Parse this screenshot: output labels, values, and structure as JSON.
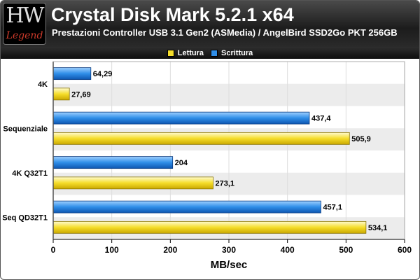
{
  "logo": {
    "hw": "HW",
    "legend": "Legend"
  },
  "chart_data": {
    "type": "bar",
    "orientation": "horizontal",
    "title": "Crystal Disk Mark 5.2.1 x64",
    "subtitle": "Prestazioni Controller USB 3.1 Gen2 (ASMedia) / AngelBird SSD2Go PKT 256GB",
    "xlabel": "MB/sec",
    "ylabel": "",
    "xlim": [
      0,
      600
    ],
    "xticks": [
      0,
      100,
      200,
      300,
      400,
      500,
      600
    ],
    "grid": "vertical",
    "legend_position": "top-center",
    "categories": [
      "4K",
      "Sequenziale",
      "4K Q32T1",
      "Seq QD32T1"
    ],
    "series": [
      {
        "name": "Lettura",
        "color": "#f5dd2a",
        "values": [
          27.69,
          505.9,
          273.1,
          534.1
        ],
        "labels": [
          "27,69",
          "505,9",
          "273,1",
          "534,1"
        ]
      },
      {
        "name": "Scrittura",
        "color": "#2f8ee8",
        "values": [
          64.29,
          437.4,
          204,
          457.1
        ],
        "labels": [
          "64,29",
          "437,4",
          "204",
          "457,1"
        ]
      }
    ]
  }
}
